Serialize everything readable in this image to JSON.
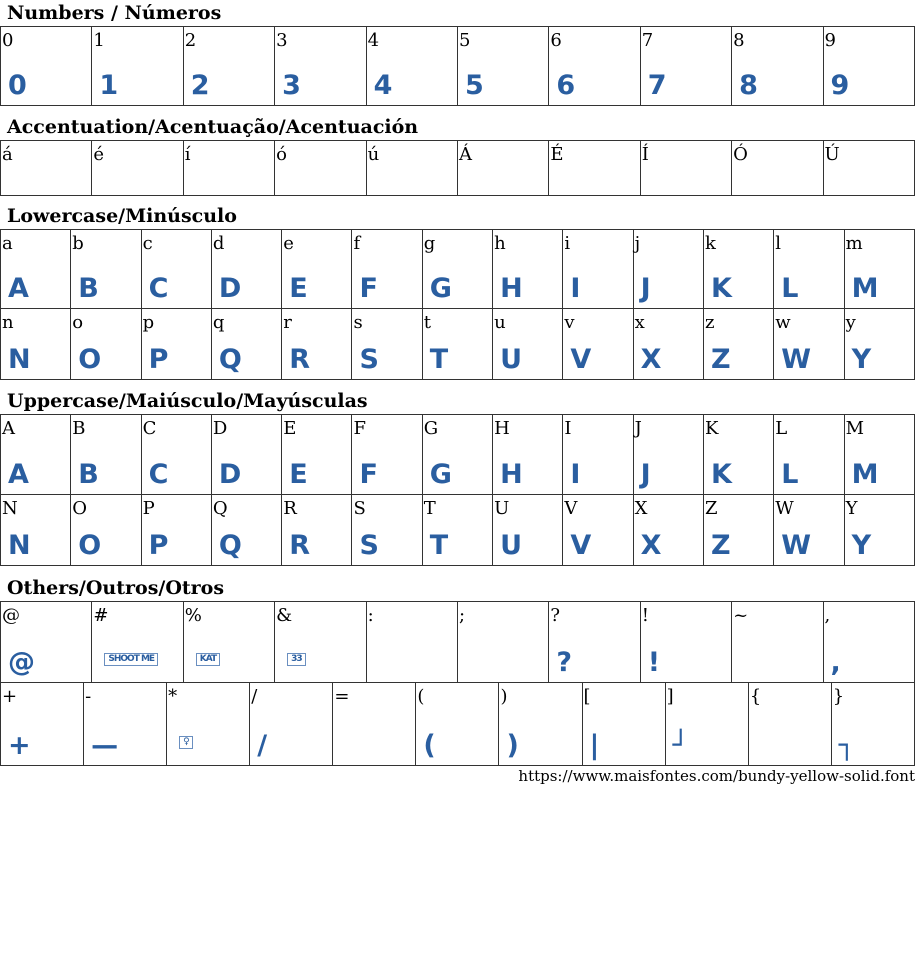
{
  "sections": [
    {
      "title": "Numbers / Números",
      "rows": [
        [
          {
            "label": "0",
            "glyph": "0"
          },
          {
            "label": "1",
            "glyph": "1"
          },
          {
            "label": "2",
            "glyph": "2"
          },
          {
            "label": "3",
            "glyph": "3"
          },
          {
            "label": "4",
            "glyph": "4"
          },
          {
            "label": "5",
            "glyph": "5"
          },
          {
            "label": "6",
            "glyph": "6"
          },
          {
            "label": "7",
            "glyph": "7"
          },
          {
            "label": "8",
            "glyph": "8"
          },
          {
            "label": "9",
            "glyph": "9"
          }
        ]
      ]
    },
    {
      "title": "Accentuation/Acentuação/Acentuación",
      "rows": [
        [
          {
            "label": "á",
            "glyph": ""
          },
          {
            "label": "é",
            "glyph": ""
          },
          {
            "label": "í",
            "glyph": ""
          },
          {
            "label": "ó",
            "glyph": ""
          },
          {
            "label": "ú",
            "glyph": ""
          },
          {
            "label": "Á",
            "glyph": ""
          },
          {
            "label": "É",
            "glyph": ""
          },
          {
            "label": "Í",
            "glyph": ""
          },
          {
            "label": "Ó",
            "glyph": ""
          },
          {
            "label": "Ú",
            "glyph": ""
          }
        ]
      ]
    },
    {
      "title": "Lowercase/Minúsculo",
      "rows": [
        [
          {
            "label": "a",
            "glyph": "A"
          },
          {
            "label": "b",
            "glyph": "B"
          },
          {
            "label": "c",
            "glyph": "C"
          },
          {
            "label": "d",
            "glyph": "D"
          },
          {
            "label": "e",
            "glyph": "E"
          },
          {
            "label": "f",
            "glyph": "F"
          },
          {
            "label": "g",
            "glyph": "G"
          },
          {
            "label": "h",
            "glyph": "H"
          },
          {
            "label": "i",
            "glyph": "I"
          },
          {
            "label": "j",
            "glyph": "J"
          },
          {
            "label": "k",
            "glyph": "K"
          },
          {
            "label": "l",
            "glyph": "L"
          },
          {
            "label": "m",
            "glyph": "M"
          }
        ],
        [
          {
            "label": "n",
            "glyph": "N"
          },
          {
            "label": "o",
            "glyph": "O"
          },
          {
            "label": "p",
            "glyph": "P"
          },
          {
            "label": "q",
            "glyph": "Q"
          },
          {
            "label": "r",
            "glyph": "R"
          },
          {
            "label": "s",
            "glyph": "S"
          },
          {
            "label": "t",
            "glyph": "T"
          },
          {
            "label": "u",
            "glyph": "U"
          },
          {
            "label": "v",
            "glyph": "V"
          },
          {
            "label": "x",
            "glyph": "X"
          },
          {
            "label": "z",
            "glyph": "Z"
          },
          {
            "label": "w",
            "glyph": "W"
          },
          {
            "label": "y",
            "glyph": "Y"
          }
        ]
      ]
    },
    {
      "title": "Uppercase/Maiúsculo/Mayúsculas",
      "rows": [
        [
          {
            "label": "A",
            "glyph": "A"
          },
          {
            "label": "B",
            "glyph": "B"
          },
          {
            "label": "C",
            "glyph": "C"
          },
          {
            "label": "D",
            "glyph": "D"
          },
          {
            "label": "E",
            "glyph": "E"
          },
          {
            "label": "F",
            "glyph": "F"
          },
          {
            "label": "G",
            "glyph": "G"
          },
          {
            "label": "H",
            "glyph": "H"
          },
          {
            "label": "I",
            "glyph": "I"
          },
          {
            "label": "J",
            "glyph": "J"
          },
          {
            "label": "K",
            "glyph": "K"
          },
          {
            "label": "L",
            "glyph": "L"
          },
          {
            "label": "M",
            "glyph": "M"
          }
        ],
        [
          {
            "label": "N",
            "glyph": "N"
          },
          {
            "label": "O",
            "glyph": "O"
          },
          {
            "label": "P",
            "glyph": "P"
          },
          {
            "label": "Q",
            "glyph": "Q"
          },
          {
            "label": "R",
            "glyph": "R"
          },
          {
            "label": "S",
            "glyph": "S"
          },
          {
            "label": "T",
            "glyph": "T"
          },
          {
            "label": "U",
            "glyph": "U"
          },
          {
            "label": "V",
            "glyph": "V"
          },
          {
            "label": "X",
            "glyph": "X"
          },
          {
            "label": "Z",
            "glyph": "Z"
          },
          {
            "label": "W",
            "glyph": "W"
          },
          {
            "label": "Y",
            "glyph": "Y"
          }
        ]
      ]
    },
    {
      "title": "Others/Outros/Otros",
      "rows": [
        [
          {
            "label": "@",
            "glyph": "@"
          },
          {
            "label": "#",
            "glyph": "SHOOT ME",
            "box": true
          },
          {
            "label": "%",
            "glyph": "KAT",
            "box": true
          },
          {
            "label": "&",
            "glyph": "33",
            "box": true
          },
          {
            "label": ":",
            "glyph": ""
          },
          {
            "label": ";",
            "glyph": ""
          },
          {
            "label": "?",
            "glyph": "?"
          },
          {
            "label": "!",
            "glyph": "!"
          },
          {
            "label": "~",
            "glyph": ""
          },
          {
            "label": ",",
            "glyph": ","
          }
        ],
        [
          {
            "label": "+",
            "glyph": "+"
          },
          {
            "label": "-",
            "glyph": "—"
          },
          {
            "label": "*",
            "glyph": "♀",
            "box": true
          },
          {
            "label": "/",
            "glyph": "/"
          },
          {
            "label": "=",
            "glyph": ""
          },
          {
            "label": "(",
            "glyph": "("
          },
          {
            "label": ")",
            "glyph": ")"
          },
          {
            "label": "[",
            "glyph": "|"
          },
          {
            "label": "]",
            "glyph": "┘"
          },
          {
            "label": "{",
            "glyph": ""
          },
          {
            "label": "}",
            "glyph": "┐"
          }
        ]
      ]
    }
  ],
  "footer": {
    "url": "https://www.maisfontes.com/bundy-yellow-solid.font"
  },
  "colors": {
    "glyph": "#2a5ea0"
  }
}
